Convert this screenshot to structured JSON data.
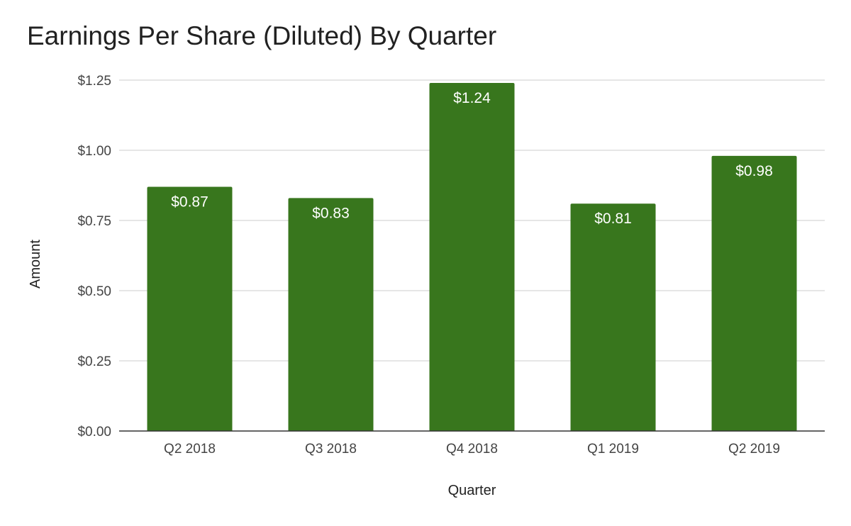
{
  "chart_data": {
    "type": "bar",
    "title": "Earnings Per Share (Diluted) By Quarter",
    "xlabel": "Quarter",
    "ylabel": "Amount",
    "categories": [
      "Q2 2018",
      "Q3 2018",
      "Q4 2018",
      "Q1 2019",
      "Q2 2019"
    ],
    "values": [
      0.87,
      0.83,
      1.24,
      0.81,
      0.98
    ],
    "data_labels": [
      "$0.87",
      "$0.83",
      "$1.24",
      "$0.81",
      "$0.98"
    ],
    "ylim": [
      0,
      1.25
    ],
    "yticks": [
      0,
      0.25,
      0.5,
      0.75,
      1.0,
      1.25
    ],
    "ytick_labels": [
      "$0.00",
      "$0.25",
      "$0.50",
      "$0.75",
      "$1.00",
      "$1.25"
    ],
    "grid": true,
    "legend": "none",
    "bar_color": "#38761d"
  }
}
